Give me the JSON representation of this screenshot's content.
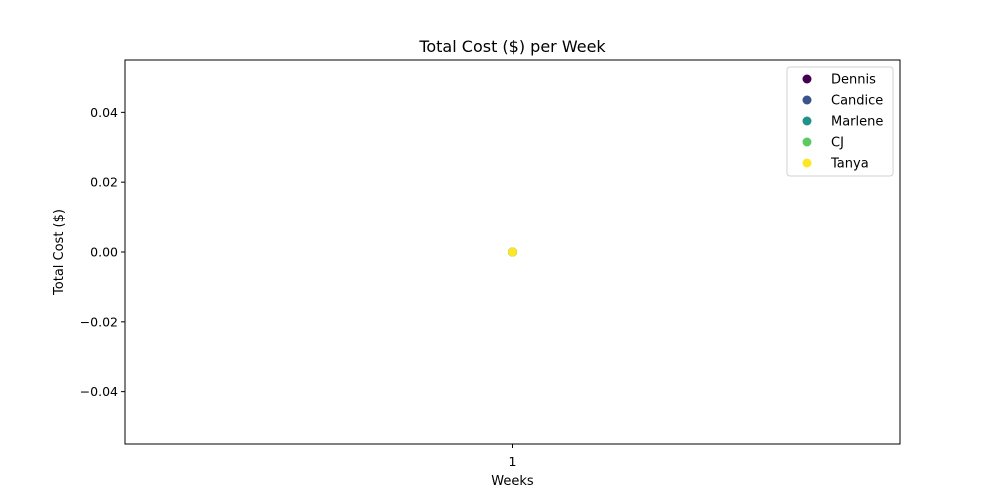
{
  "chart_data": {
    "type": "scatter",
    "title": "Total Cost ($) per Week",
    "xlabel": "Weeks",
    "ylabel": "Total Cost ($)",
    "x_ticks": [
      "1"
    ],
    "y_ticks": [
      0.04,
      0.02,
      0.0,
      -0.02,
      -0.04
    ],
    "y_tick_labels": [
      "0.04",
      "0.02",
      "0.00",
      "−0.02",
      "−0.04"
    ],
    "xlim": [
      0.5,
      1.5
    ],
    "ylim": [
      -0.055,
      0.055
    ],
    "grid": false,
    "legend_position": "top-right",
    "series": [
      {
        "name": "Dennis",
        "color": "#440154",
        "points": [
          {
            "x": 1,
            "y": 0
          }
        ]
      },
      {
        "name": "Candice",
        "color": "#3b528b",
        "points": [
          {
            "x": 1,
            "y": 0
          }
        ]
      },
      {
        "name": "Marlene",
        "color": "#21918c",
        "points": [
          {
            "x": 1,
            "y": 0
          }
        ]
      },
      {
        "name": "CJ",
        "color": "#5ec962",
        "points": [
          {
            "x": 1,
            "y": 0
          }
        ]
      },
      {
        "name": "Tanya",
        "color": "#fde725",
        "points": [
          {
            "x": 1,
            "y": 0
          }
        ]
      }
    ]
  }
}
